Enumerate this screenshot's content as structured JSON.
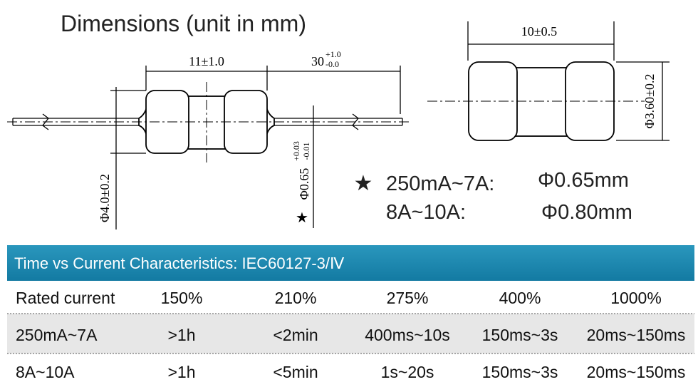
{
  "header": {
    "title": "Dimensions (unit in mm)"
  },
  "drawing_axial": {
    "body_length": "11±1.0",
    "lead_length": "30",
    "lead_tol_plus": "+1.0",
    "lead_tol_minus": "-0.0",
    "body_diameter": "Φ4.0±0.2",
    "lead_diameter": "Φ0.65",
    "lead_dia_tol_plus": "+0.03",
    "lead_dia_tol_minus": "-0.01",
    "marker": "★"
  },
  "drawing_smd": {
    "length": "10±0.5",
    "diameter": "Φ3.60±0.2"
  },
  "notes": [
    {
      "marker": "★",
      "range": "250mA~7A:",
      "diameter": "Φ0.65mm"
    },
    {
      "range": "8A~10A:",
      "diameter": "Φ0.80mm"
    }
  ],
  "table": {
    "title": "Time vs Current Characteristics: IEC60127-3/Ⅳ",
    "header": [
      "Rated current",
      "150%",
      "210%",
      "275%",
      "400%",
      "1000%"
    ],
    "rows": [
      [
        "250mA~7A",
        ">1h",
        "<2min",
        "400ms~10s",
        "150ms~3s",
        "20ms~150ms"
      ],
      [
        "8A~10A",
        ">1h",
        "<5min",
        "1s~20s",
        "150ms~3s",
        "20ms~150ms"
      ]
    ]
  }
}
